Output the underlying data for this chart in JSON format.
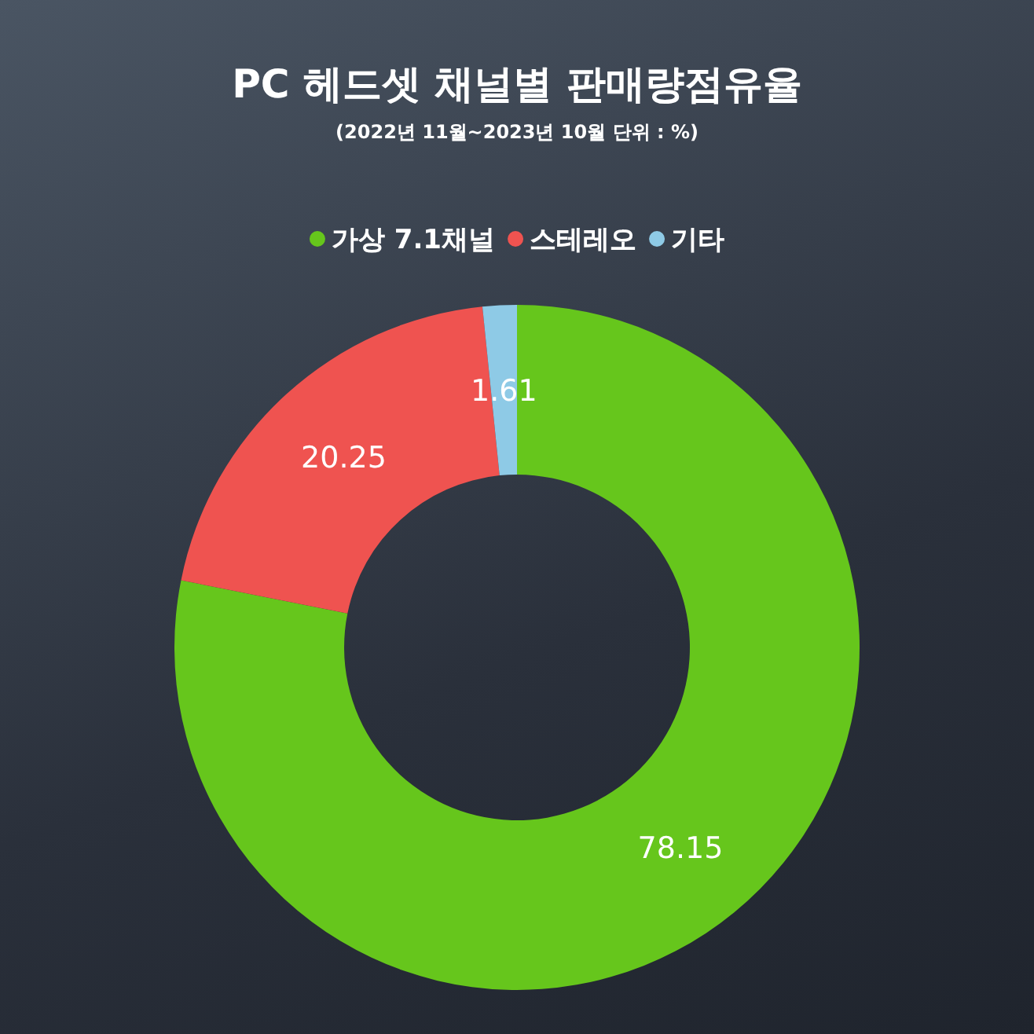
{
  "chart_data": {
    "type": "donut",
    "title": "PC 헤드셋 채널별 판매량점유율",
    "subtitle": "(2022년 11월~2023년 10월 단위 : %)",
    "categories": [
      "가상 7.1채널",
      "스테레오",
      "기타"
    ],
    "values": [
      78.15,
      20.25,
      1.61
    ],
    "colors": [
      "#66c61c",
      "#ef5350",
      "#8ecae6"
    ],
    "data_labels": true,
    "legend": "top"
  }
}
